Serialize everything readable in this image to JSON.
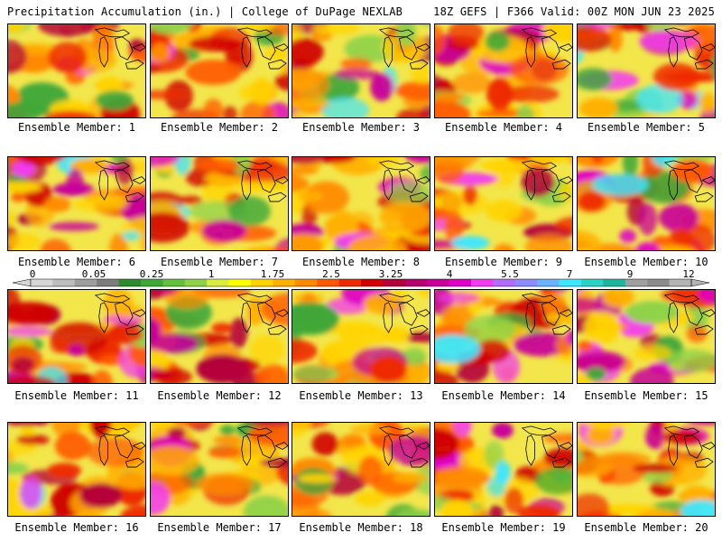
{
  "header": {
    "title": "Precipitation Accumulation (in.) | College of DuPage NEXLAB",
    "run_info": "18Z GEFS | F366 Valid: 00Z MON JUN 23 2025"
  },
  "legend": {
    "tick_labels": [
      "0",
      "0.05",
      "0.25",
      "1",
      "1.75",
      "2.5",
      "3.25",
      "4",
      "5.5",
      "7",
      "9",
      "12"
    ],
    "colors": [
      "#d6d6d6",
      "#bdbdbd",
      "#9e9e9e",
      "#7d7d7d",
      "#2e8b2e",
      "#3ea83a",
      "#64c13d",
      "#8fd24a",
      "#d8ee3e",
      "#ffff00",
      "#ffd400",
      "#ffb000",
      "#ff8a00",
      "#ff5a00",
      "#ee2a00",
      "#d00000",
      "#b4003a",
      "#b5006e",
      "#c8009a",
      "#e000c8",
      "#f23cf0",
      "#b46cff",
      "#8c8cff",
      "#6ab4ff",
      "#3ee6ff",
      "#2ad2c8",
      "#1fb4a0",
      "#a0a0a0",
      "#8c8c8c",
      "#b4b4b4"
    ]
  },
  "members": [
    {
      "label": "Ensemble Member: 1"
    },
    {
      "label": "Ensemble Member: 2"
    },
    {
      "label": "Ensemble Member: 3"
    },
    {
      "label": "Ensemble Member: 4"
    },
    {
      "label": "Ensemble Member: 5"
    },
    {
      "label": "Ensemble Member: 6"
    },
    {
      "label": "Ensemble Member: 7"
    },
    {
      "label": "Ensemble Member: 8"
    },
    {
      "label": "Ensemble Member: 9"
    },
    {
      "label": "Ensemble Member: 10"
    },
    {
      "label": "Ensemble Member: 11"
    },
    {
      "label": "Ensemble Member: 12"
    },
    {
      "label": "Ensemble Member: 13"
    },
    {
      "label": "Ensemble Member: 14"
    },
    {
      "label": "Ensemble Member: 15"
    },
    {
      "label": "Ensemble Member: 16"
    },
    {
      "label": "Ensemble Member: 17"
    },
    {
      "label": "Ensemble Member: 18"
    },
    {
      "label": "Ensemble Member: 19"
    },
    {
      "label": "Ensemble Member: 20"
    }
  ]
}
